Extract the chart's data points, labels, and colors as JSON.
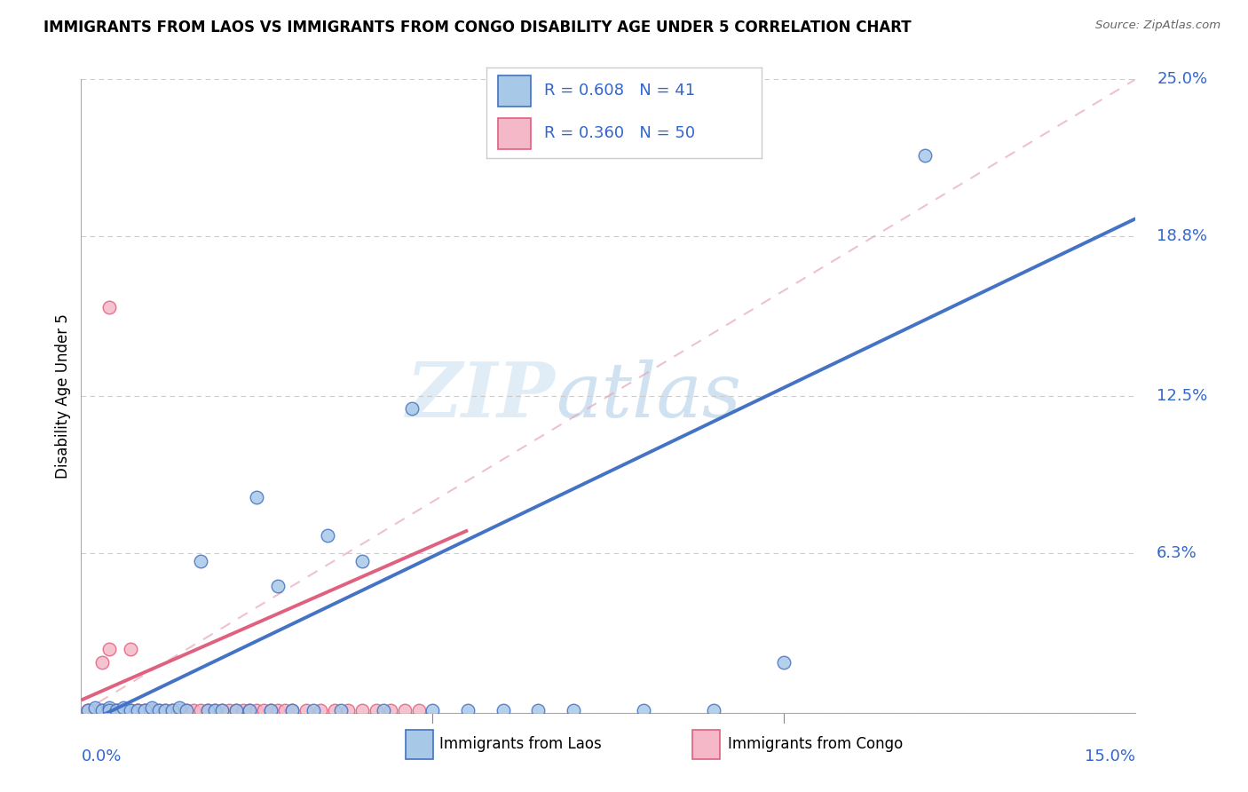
{
  "title": "IMMIGRANTS FROM LAOS VS IMMIGRANTS FROM CONGO DISABILITY AGE UNDER 5 CORRELATION CHART",
  "source": "Source: ZipAtlas.com",
  "ylabel": "Disability Age Under 5",
  "xmin": 0.0,
  "xmax": 0.15,
  "ymin": 0.0,
  "ymax": 0.25,
  "R_laos": 0.608,
  "N_laos": 41,
  "R_congo": 0.36,
  "N_congo": 50,
  "color_laos_fill": "#a8c8e8",
  "color_laos_edge": "#4472c4",
  "color_laos_line": "#4472c4",
  "color_congo_fill": "#f4b8c8",
  "color_congo_edge": "#e06080",
  "color_congo_line": "#e06080",
  "color_diagonal": "#d0a0a8",
  "color_grid": "#cccccc",
  "color_tick_label": "#3366cc",
  "legend_label_laos": "Immigrants from Laos",
  "legend_label_congo": "Immigrants from Congo",
  "watermark_zip": "ZIP",
  "watermark_atlas": "atlas",
  "ytick_positions": [
    0.0,
    0.063,
    0.125,
    0.188,
    0.25
  ],
  "ytick_labels": [
    "0.0%",
    "6.3%",
    "12.5%",
    "18.8%",
    "25.0%"
  ],
  "laos_x": [
    0.001,
    0.002,
    0.003,
    0.004,
    0.004,
    0.005,
    0.006,
    0.007,
    0.008,
    0.009,
    0.01,
    0.011,
    0.012,
    0.013,
    0.014,
    0.015,
    0.017,
    0.018,
    0.019,
    0.02,
    0.022,
    0.024,
    0.025,
    0.027,
    0.028,
    0.03,
    0.033,
    0.035,
    0.037,
    0.04,
    0.043,
    0.047,
    0.05,
    0.055,
    0.06,
    0.065,
    0.07,
    0.08,
    0.09,
    0.1,
    0.12
  ],
  "laos_y": [
    0.001,
    0.002,
    0.001,
    0.002,
    0.001,
    0.001,
    0.002,
    0.001,
    0.001,
    0.001,
    0.002,
    0.001,
    0.001,
    0.001,
    0.002,
    0.001,
    0.06,
    0.001,
    0.001,
    0.001,
    0.001,
    0.001,
    0.085,
    0.001,
    0.05,
    0.001,
    0.001,
    0.07,
    0.001,
    0.06,
    0.001,
    0.12,
    0.001,
    0.001,
    0.001,
    0.001,
    0.001,
    0.001,
    0.001,
    0.02,
    0.22
  ],
  "laos_line_x": [
    0.0,
    0.15
  ],
  "laos_line_y": [
    -0.005,
    0.195
  ],
  "congo_x": [
    0.001,
    0.001,
    0.002,
    0.002,
    0.003,
    0.003,
    0.004,
    0.004,
    0.005,
    0.005,
    0.006,
    0.006,
    0.007,
    0.007,
    0.008,
    0.008,
    0.009,
    0.009,
    0.01,
    0.01,
    0.011,
    0.012,
    0.013,
    0.014,
    0.015,
    0.016,
    0.017,
    0.018,
    0.019,
    0.02,
    0.021,
    0.022,
    0.023,
    0.024,
    0.025,
    0.026,
    0.027,
    0.028,
    0.029,
    0.03,
    0.032,
    0.034,
    0.036,
    0.038,
    0.04,
    0.042,
    0.044,
    0.046,
    0.048,
    0.004
  ],
  "congo_y": [
    0.001,
    0.001,
    0.001,
    0.001,
    0.001,
    0.02,
    0.001,
    0.025,
    0.001,
    0.001,
    0.001,
    0.001,
    0.001,
    0.025,
    0.001,
    0.001,
    0.001,
    0.001,
    0.001,
    0.001,
    0.001,
    0.001,
    0.001,
    0.001,
    0.001,
    0.001,
    0.001,
    0.001,
    0.001,
    0.001,
    0.001,
    0.001,
    0.001,
    0.001,
    0.001,
    0.001,
    0.001,
    0.001,
    0.001,
    0.001,
    0.001,
    0.001,
    0.001,
    0.001,
    0.001,
    0.001,
    0.001,
    0.001,
    0.001,
    0.16
  ],
  "congo_line_x": [
    0.0,
    0.055
  ],
  "congo_line_y": [
    0.005,
    0.072
  ]
}
